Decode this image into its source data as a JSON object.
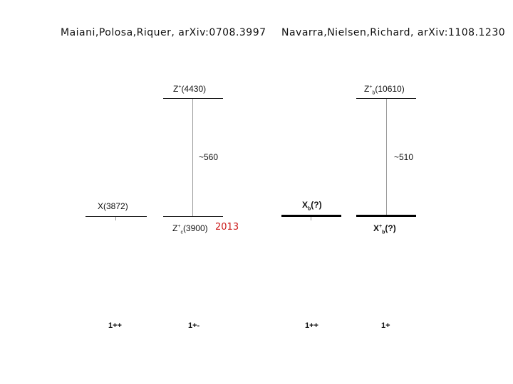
{
  "left_panel": {
    "reference": "Maiani,Polosa,Riquer, arXiv:0708.3997",
    "upper_state": {
      "name": "Z",
      "sup": "+",
      "mass": "(4430)"
    },
    "splitting": "~560",
    "left_state": {
      "label": "X(3872)"
    },
    "lower_state": {
      "name": "Z",
      "sup": "+",
      "sub": "c",
      "mass": "(3900)"
    },
    "year_note": "2013",
    "jpc_left": "1++",
    "jpc_right": "1+-"
  },
  "right_panel": {
    "reference": "Navarra,Nielsen,Richard, arXiv:1108.1230",
    "upper_state": {
      "name": "Z",
      "sup": "+",
      "sub": "b",
      "mass": "(10610)"
    },
    "splitting": "~510",
    "left_state": {
      "name": "X",
      "sub": "b",
      "mass": "(?)"
    },
    "lower_state": {
      "name": "X",
      "sup": "+",
      "sub": "b",
      "mass": "(?)"
    },
    "jpc_left": "1++",
    "jpc_right": "1+"
  }
}
